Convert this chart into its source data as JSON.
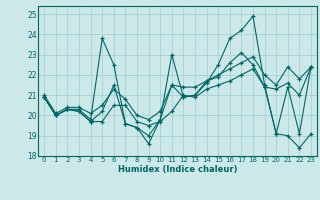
{
  "xlabel": "Humidex (Indice chaleur)",
  "xlim": [
    -0.5,
    23.5
  ],
  "ylim": [
    18,
    25.4
  ],
  "yticks": [
    18,
    19,
    20,
    21,
    22,
    23,
    24,
    25
  ],
  "xticks": [
    0,
    1,
    2,
    3,
    4,
    5,
    6,
    7,
    8,
    9,
    10,
    11,
    12,
    13,
    14,
    15,
    16,
    17,
    18,
    19,
    20,
    21,
    22,
    23
  ],
  "background_color": "#cce8e8",
  "grid_color": "#aad4d4",
  "line_color": "#006666",
  "lines": [
    {
      "x": [
        0,
        1,
        2,
        3,
        4,
        5,
        6,
        7,
        8,
        9,
        10,
        11,
        12,
        13,
        14,
        15,
        16,
        17,
        18,
        19,
        20,
        21,
        22,
        23
      ],
      "y": [
        20.9,
        20.0,
        20.3,
        20.3,
        19.8,
        23.8,
        22.5,
        19.6,
        19.4,
        18.6,
        19.8,
        23.0,
        20.9,
        21.0,
        21.6,
        22.5,
        23.8,
        24.2,
        24.9,
        21.5,
        19.1,
        19.0,
        18.4,
        19.1
      ]
    },
    {
      "x": [
        0,
        1,
        2,
        3,
        4,
        5,
        6,
        7,
        8,
        9,
        10,
        11,
        12,
        13,
        14,
        15,
        16,
        17,
        18,
        19,
        20,
        21,
        22,
        23
      ],
      "y": [
        20.9,
        20.0,
        20.3,
        20.2,
        19.7,
        20.2,
        21.5,
        19.6,
        19.4,
        19.0,
        19.8,
        21.5,
        20.9,
        21.0,
        21.7,
        21.9,
        22.6,
        23.1,
        22.5,
        21.4,
        19.1,
        21.4,
        19.1,
        22.4
      ]
    },
    {
      "x": [
        0,
        1,
        2,
        3,
        4,
        5,
        6,
        7,
        8,
        9,
        10,
        11,
        12,
        13,
        14,
        15,
        16,
        17,
        18,
        19,
        20,
        21,
        22,
        23
      ],
      "y": [
        21.0,
        20.1,
        20.4,
        20.4,
        20.1,
        20.5,
        21.3,
        20.8,
        20.0,
        19.8,
        20.2,
        21.5,
        21.4,
        21.4,
        21.7,
        22.0,
        22.3,
        22.6,
        22.9,
        22.0,
        21.5,
        22.4,
        21.8,
        22.4
      ]
    },
    {
      "x": [
        0,
        1,
        2,
        3,
        4,
        5,
        6,
        7,
        8,
        9,
        10,
        11,
        12,
        13,
        14,
        15,
        16,
        17,
        18,
        19,
        20,
        21,
        22,
        23
      ],
      "y": [
        20.9,
        20.0,
        20.3,
        20.2,
        19.7,
        19.7,
        20.5,
        20.5,
        19.7,
        19.5,
        19.7,
        20.2,
        21.0,
        20.9,
        21.3,
        21.5,
        21.7,
        22.0,
        22.3,
        21.4,
        21.3,
        21.6,
        21.0,
        22.4
      ]
    }
  ]
}
